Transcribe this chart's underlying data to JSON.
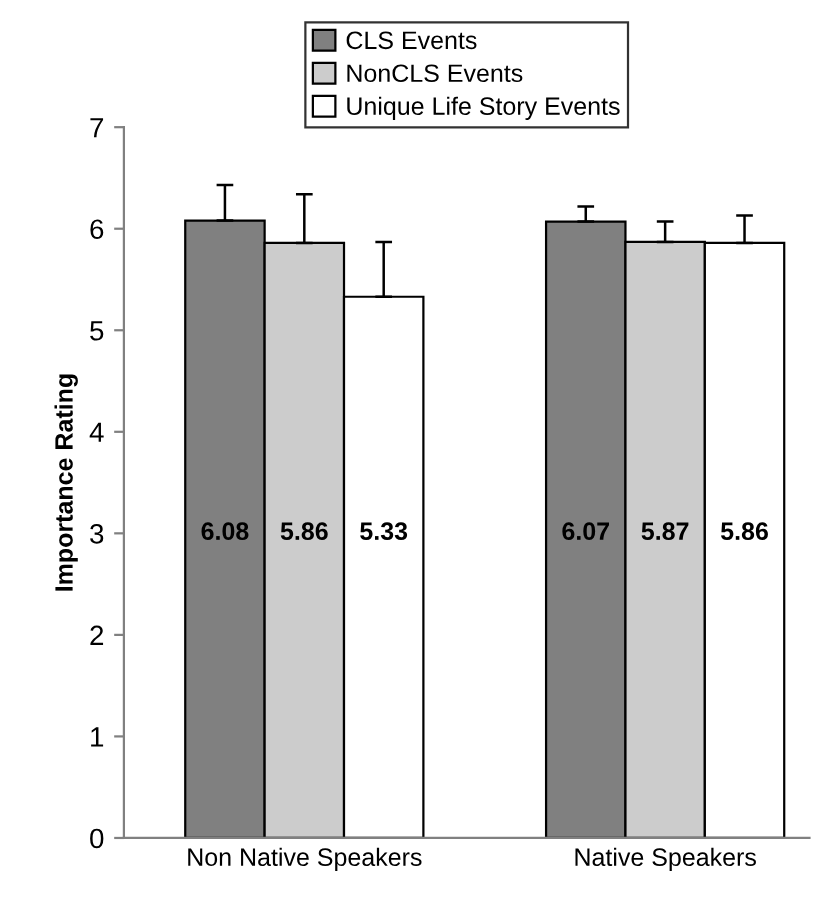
{
  "chart_data": {
    "type": "bar",
    "ylabel": "Importance Rating",
    "categories": [
      "Non Native Speakers",
      "Native Speakers"
    ],
    "series": [
      {
        "name": "CLS Events",
        "color": "#808080",
        "values": [
          6.08,
          6.07
        ],
        "errors": [
          [
            6.08,
            6.43
          ],
          [
            6.07,
            6.22
          ]
        ]
      },
      {
        "name": "NonCLS Events",
        "color": "#cccccc",
        "values": [
          5.86,
          5.87
        ],
        "errors": [
          [
            5.86,
            6.34
          ],
          [
            5.87,
            6.07
          ]
        ]
      },
      {
        "name": "Unique Life Story Events",
        "color": "#ffffff",
        "values": [
          5.33,
          5.86
        ],
        "errors": [
          [
            5.33,
            5.87
          ],
          [
            5.86,
            6.13
          ]
        ]
      }
    ],
    "ylim": [
      0,
      7
    ],
    "yticks": [
      0,
      1,
      2,
      3,
      4,
      5,
      6,
      7
    ],
    "data_labels": true,
    "legend": "top",
    "grid": false
  }
}
